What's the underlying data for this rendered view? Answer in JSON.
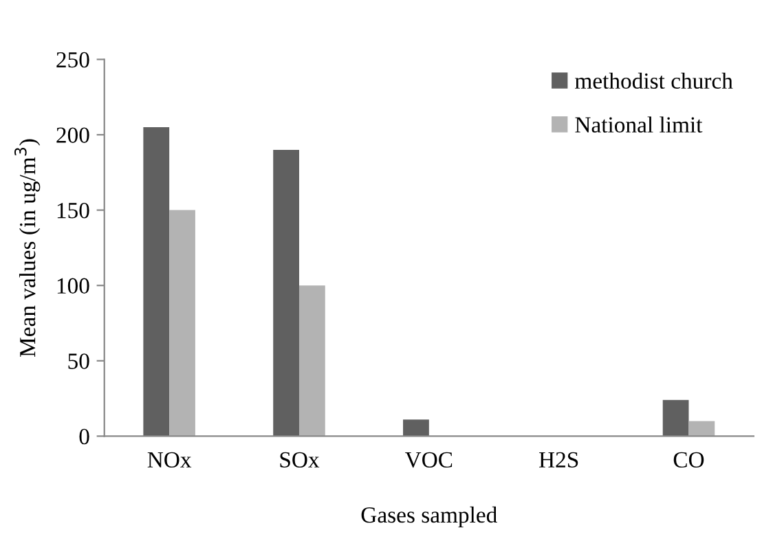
{
  "chart_data": {
    "type": "bar",
    "xlabel": "Gases sampled",
    "ylabel": "Mean values (in ug/m$^{3}$)",
    "categories": [
      "NOx",
      "SOx",
      "VOC",
      "H2S",
      "CO"
    ],
    "series": [
      {
        "name": "methodist church",
        "color": "#606060",
        "values": [
          205,
          190,
          11,
          0,
          24
        ]
      },
      {
        "name": "National limit",
        "color": "#b3b3b3",
        "values": [
          150,
          100,
          0,
          0,
          10
        ]
      }
    ],
    "ylim": [
      0,
      250
    ],
    "yticks": [
      0,
      50,
      100,
      150,
      200,
      250
    ],
    "grid": false,
    "legend": "top right"
  }
}
